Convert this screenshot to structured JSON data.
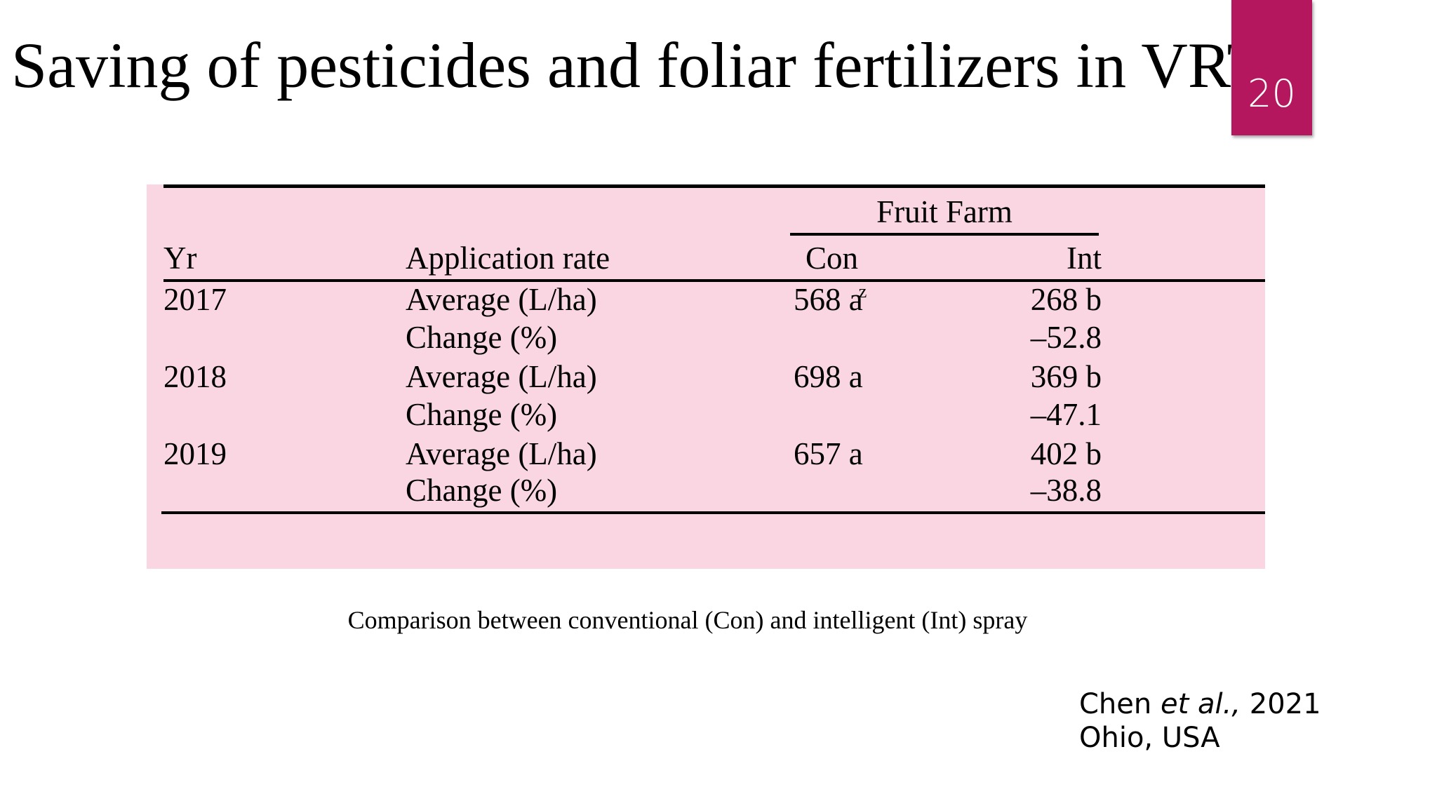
{
  "slide": {
    "title": "Saving of pesticides and foliar fertilizers in VRT",
    "page_number": "20",
    "accent_color": "#b5175f",
    "table_background": "#f9d6e1"
  },
  "table": {
    "group_header": "Fruit Farm",
    "headers": {
      "year": "Yr",
      "application_rate": "Application rate",
      "con": "Con",
      "int": "Int"
    },
    "rows": [
      {
        "year": "2017",
        "rate": "Average (L/ha)",
        "con": "568 a",
        "con_sup": "z",
        "int": "268 b"
      },
      {
        "year": "",
        "rate": "Change (%)",
        "con": "",
        "con_sup": "",
        "int": "–52.8"
      },
      {
        "year": "2018",
        "rate": "Average (L/ha)",
        "con": "698 a",
        "con_sup": "",
        "int": "369 b"
      },
      {
        "year": "",
        "rate": "Change (%)",
        "con": "",
        "con_sup": "",
        "int": "–47.1"
      },
      {
        "year": "2019",
        "rate": "Average (L/ha)",
        "con": "657 a",
        "con_sup": "",
        "int": "402 b"
      },
      {
        "year": "",
        "rate": "Change (%)",
        "con": "",
        "con_sup": "",
        "int": "–38.8"
      }
    ]
  },
  "caption": "Comparison between conventional (Con) and intelligent (Int) spray",
  "citation": {
    "author": "Chen",
    "etal": "et al.,",
    "year": "2021",
    "location": "Ohio, USA"
  }
}
